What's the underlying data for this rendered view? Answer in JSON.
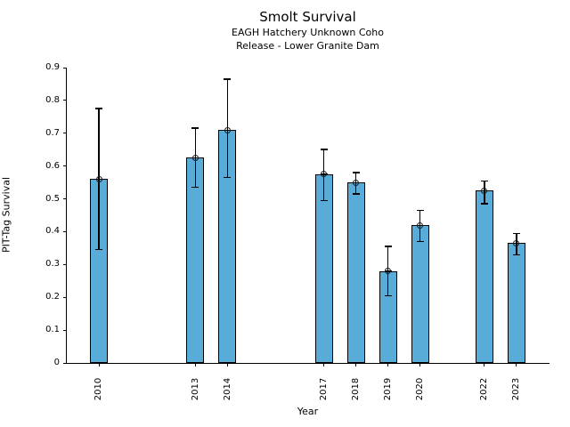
{
  "chart_data": {
    "type": "bar",
    "title": "Smolt Survival",
    "subtitle": [
      "EAGH Hatchery Unknown Coho",
      "Release - Lower Granite Dam"
    ],
    "xlabel": "Year",
    "ylabel": "PIT-Tag Survival",
    "categories": [
      2010,
      2013,
      2014,
      2017,
      2018,
      2019,
      2020,
      2022,
      2023
    ],
    "values": [
      0.56,
      0.625,
      0.71,
      0.575,
      0.55,
      0.28,
      0.42,
      0.525,
      0.365
    ],
    "error_low": [
      0.345,
      0.535,
      0.565,
      0.495,
      0.515,
      0.205,
      0.37,
      0.485,
      0.33
    ],
    "error_high": [
      0.775,
      0.715,
      0.865,
      0.65,
      0.58,
      0.355,
      0.465,
      0.555,
      0.395
    ],
    "ylim": [
      0,
      0.9
    ],
    "xlim": [
      2009,
      2024
    ],
    "yticks": [
      0,
      0.1,
      0.2,
      0.3,
      0.4,
      0.5,
      0.6,
      0.7,
      0.8,
      0.9
    ],
    "ytick_labels": [
      "0",
      "0.1",
      "0.2",
      "0.3",
      "0.4",
      "0.5",
      "0.6",
      "0.7",
      "0.8",
      "0.9"
    ],
    "grid": false,
    "legend": "none",
    "marker": "circle-cross",
    "colors": {
      "bar_fill": "#5aacd8",
      "bar_edge": "#000000",
      "error_bar": "#000000",
      "text": "#000000"
    }
  }
}
